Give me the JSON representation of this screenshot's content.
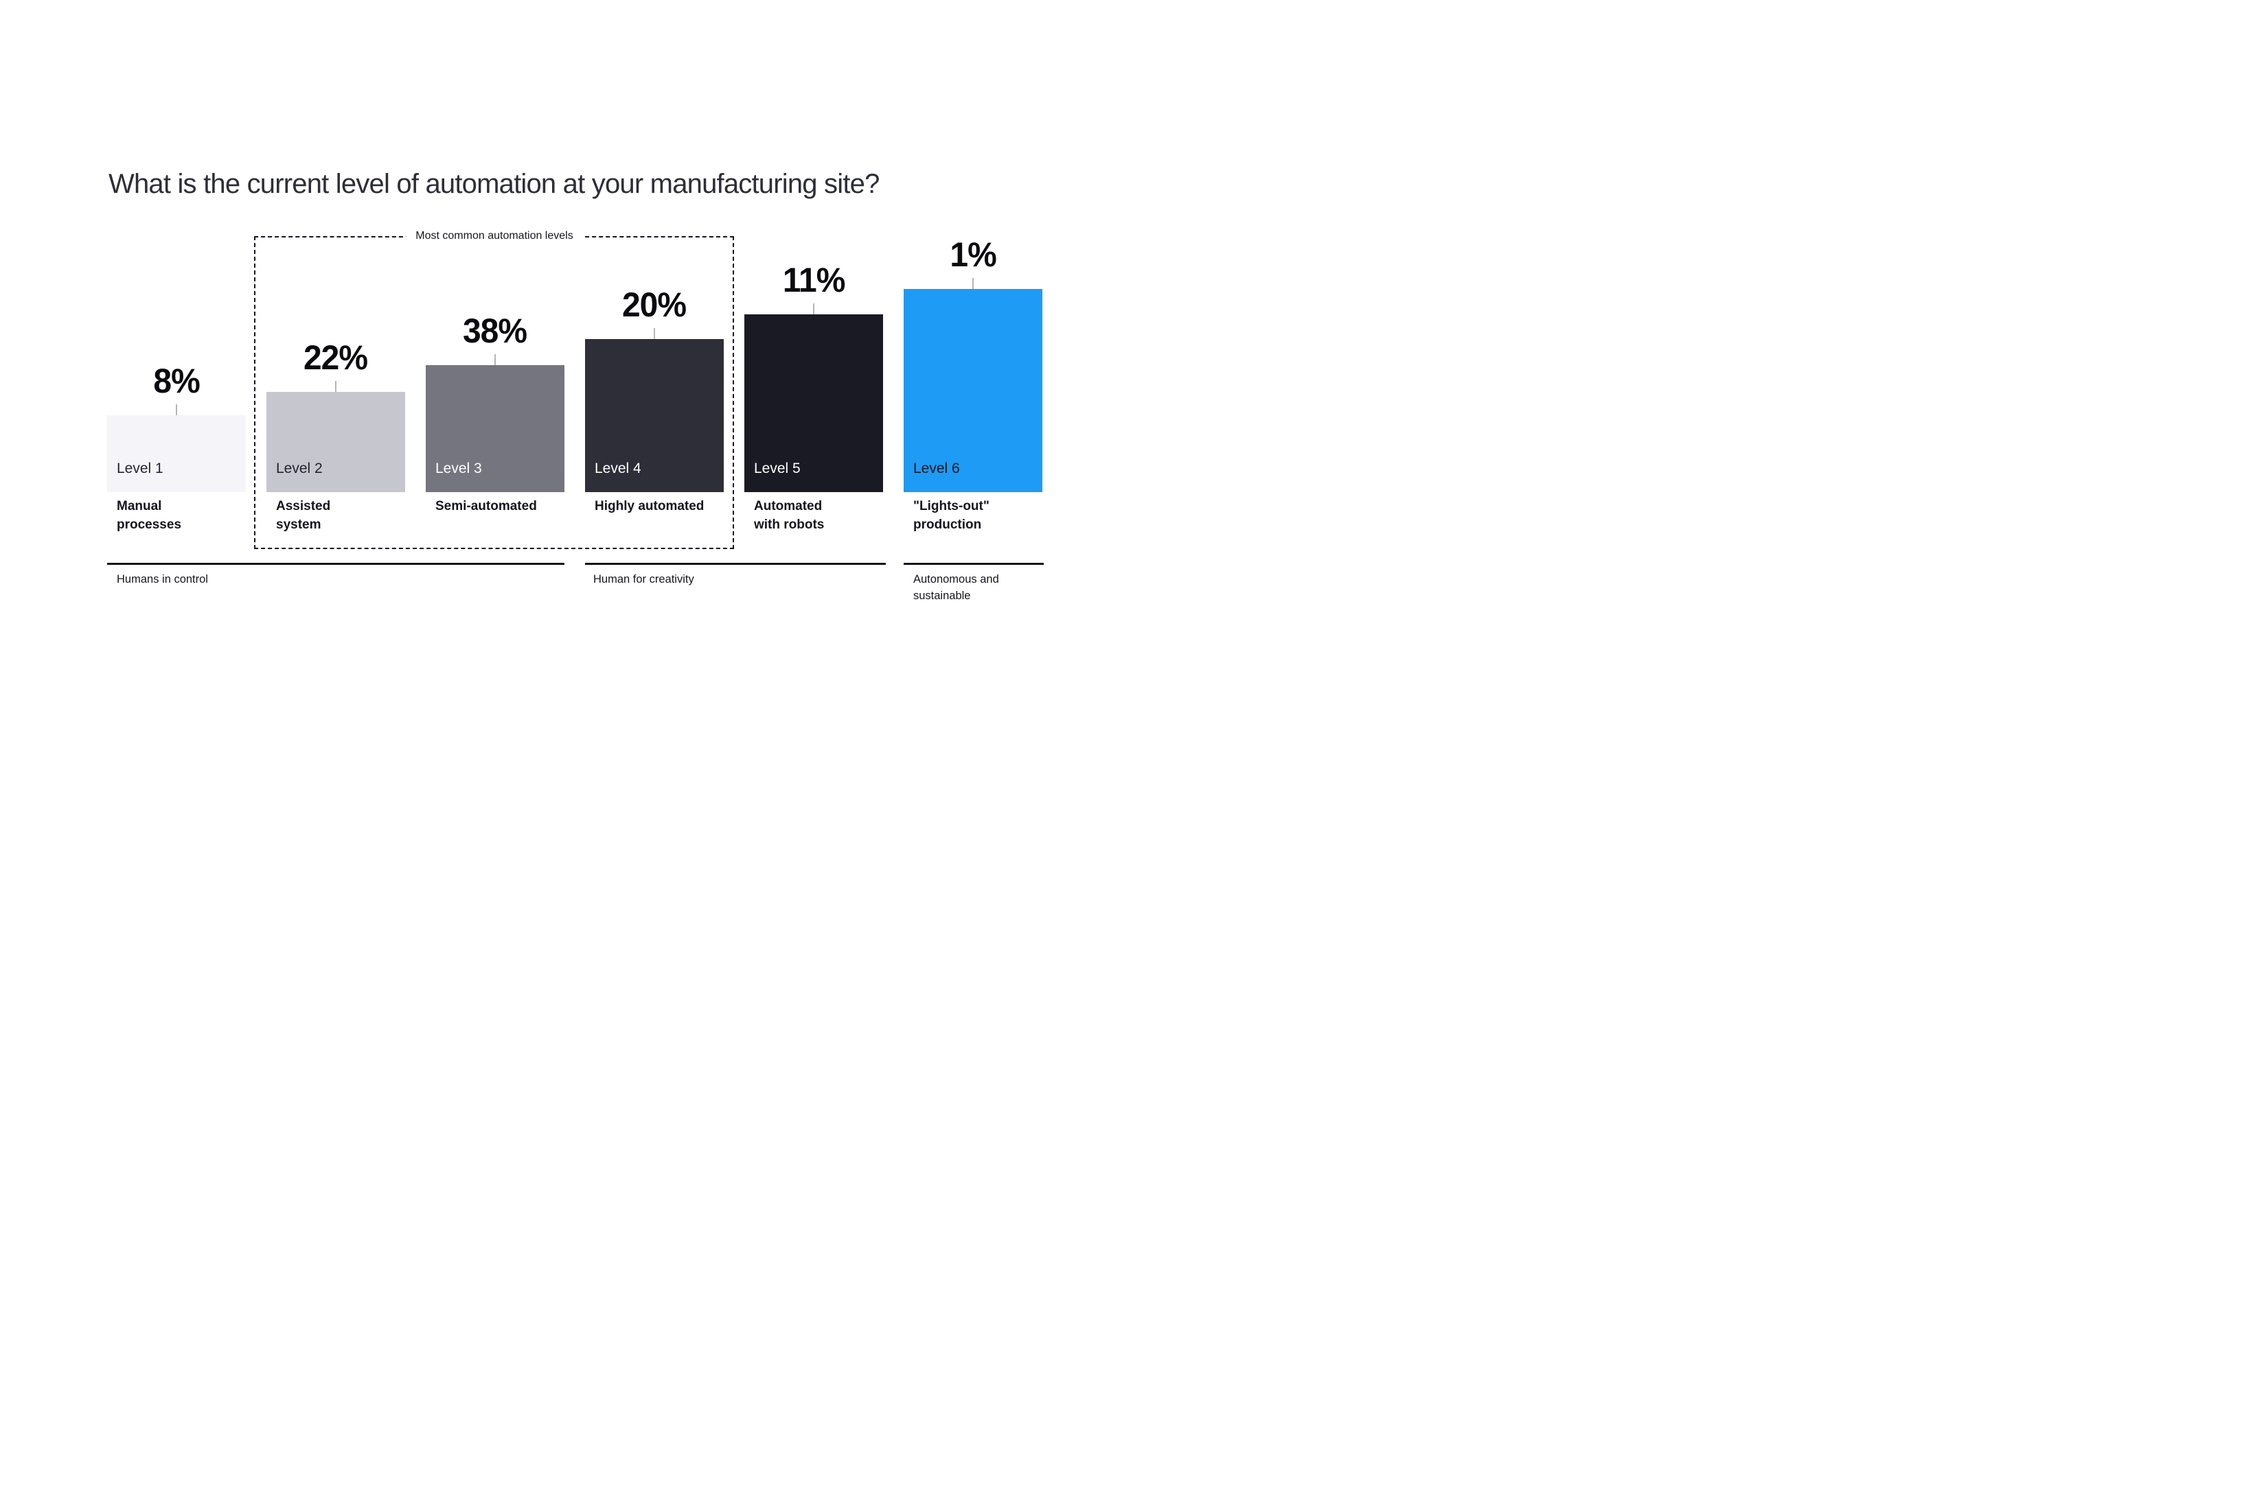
{
  "title": "What is the current level of automation at your manufacturing site?",
  "annotation_box": {
    "label": "Most common automation levels"
  },
  "chart_data": {
    "type": "bar",
    "title": "What is the current level of automation at your manufacturing site?",
    "unit": "%",
    "categories": [
      "Level 1",
      "Level 2",
      "Level 3",
      "Level 4",
      "Level 5",
      "Level 6"
    ],
    "values": [
      8,
      22,
      38,
      20,
      11,
      1
    ],
    "annotation": "Most common automation levels",
    "annotation_covers_levels": [
      2,
      3,
      4
    ],
    "legend_position": "none",
    "grid": false,
    "bars": [
      {
        "level": "Level 1",
        "percent": "8%",
        "description": "Manual\nprocesses",
        "color": "#f5f5f9",
        "level_text_color": "#23232e"
      },
      {
        "level": "Level 2",
        "percent": "22%",
        "description": "Assisted\nsystem",
        "color": "#c6c6ce",
        "level_text_color": "#23232e"
      },
      {
        "level": "Level 3",
        "percent": "38%",
        "description": "Semi-automated",
        "color": "#75757f",
        "level_text_color": "#ffffff"
      },
      {
        "level": "Level 4",
        "percent": "20%",
        "description": "Highly automated",
        "color": "#2e2e38",
        "level_text_color": "#ffffff"
      },
      {
        "level": "Level 5",
        "percent": "11%",
        "description": "Automated\nwith robots",
        "color": "#1a1a24",
        "level_text_color": "#ffffff"
      },
      {
        "level": "Level 6",
        "percent": "1%",
        "description": "\"Lights-out\"\nproduction",
        "color": "#1e9bf5",
        "level_text_color": "#15151e"
      }
    ],
    "groups": [
      {
        "label": "Humans in control",
        "level_span": [
          1,
          3
        ]
      },
      {
        "label": "Human for creativity",
        "level_span": [
          4,
          5
        ]
      },
      {
        "label": "Autonomous and\nsustainable",
        "level_span": [
          6,
          6
        ]
      }
    ]
  },
  "colors": {
    "background": "#ffffff",
    "title_text": "#2e2e38",
    "percent_text": "#0a0a0f",
    "description_text": "#15151e",
    "dashed_border": "#15151e",
    "group_line": "#15151e",
    "connector_tick": "#b5b5b5",
    "accent_blue": "#1e9bf5"
  }
}
